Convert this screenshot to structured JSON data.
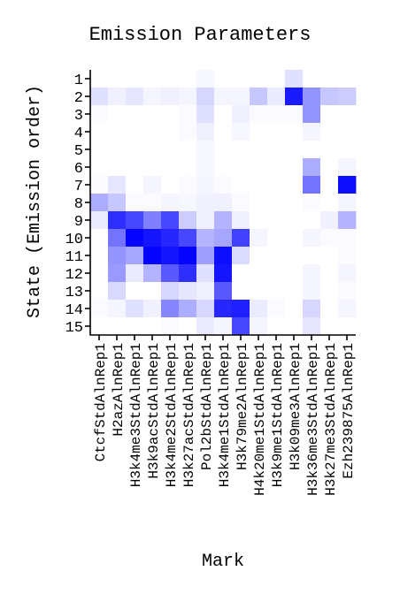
{
  "chart_data": {
    "type": "heatmap",
    "title": "Emission Parameters",
    "xlabel": "Mark",
    "ylabel": "State (Emission order)",
    "rows": [
      "1",
      "2",
      "3",
      "4",
      "5",
      "6",
      "7",
      "8",
      "9",
      "10",
      "11",
      "12",
      "13",
      "14",
      "15"
    ],
    "columns": [
      "CtcfStdAlnRep1",
      "H2azAlnRep1",
      "H3k4me3StdAlnRep1",
      "H3k9acStdAlnRep1",
      "H3k4me2StdAlnRep1",
      "H3k27acStdAlnRep1",
      "Pol2bStdAlnRep1",
      "H3k4me1StdAlnRep1",
      "H3k79me2AlnRep1",
      "H4k20me1StdAlnRep1",
      "H3k9me1StdAlnRep1",
      "H3k09me3AlnRep1",
      "H3k36me3StdAlnRep1",
      "H3k27me3StdAlnRep1",
      "Ezh239875AlnRep1"
    ],
    "values": [
      [
        0.0,
        0.0,
        0.0,
        0.0,
        0.0,
        0.0,
        0.03,
        0.0,
        0.0,
        0.0,
        0.0,
        0.12,
        0.0,
        0.0,
        0.0
      ],
      [
        0.12,
        0.06,
        0.1,
        0.04,
        0.06,
        0.04,
        0.16,
        0.04,
        0.04,
        0.22,
        0.08,
        0.9,
        0.42,
        0.22,
        0.2
      ],
      [
        0.02,
        0.0,
        0.0,
        0.0,
        0.0,
        0.02,
        0.12,
        0.0,
        0.06,
        0.02,
        0.02,
        0.02,
        0.42,
        0.0,
        0.0
      ],
      [
        0.0,
        0.0,
        0.0,
        0.0,
        0.0,
        0.02,
        0.06,
        0.0,
        0.03,
        0.0,
        0.0,
        0.0,
        0.04,
        0.0,
        0.0
      ],
      [
        0.0,
        0.0,
        0.0,
        0.0,
        0.0,
        0.0,
        0.03,
        0.0,
        0.0,
        0.0,
        0.0,
        0.0,
        0.0,
        0.0,
        0.0
      ],
      [
        0.0,
        0.0,
        0.0,
        0.0,
        0.0,
        0.0,
        0.03,
        0.0,
        0.0,
        0.0,
        0.0,
        0.0,
        0.32,
        0.0,
        0.04
      ],
      [
        0.02,
        0.1,
        0.0,
        0.04,
        0.0,
        0.02,
        0.04,
        0.02,
        0.0,
        0.0,
        0.0,
        0.0,
        0.55,
        0.0,
        0.95
      ],
      [
        0.32,
        0.22,
        0.02,
        0.02,
        0.04,
        0.03,
        0.06,
        0.06,
        0.02,
        0.0,
        0.0,
        0.0,
        0.02,
        0.0,
        0.04
      ],
      [
        0.08,
        0.82,
        0.72,
        0.5,
        0.72,
        0.2,
        0.06,
        0.3,
        0.06,
        0.0,
        0.0,
        0.0,
        0.0,
        0.06,
        0.3
      ],
      [
        0.0,
        0.55,
        0.98,
        0.92,
        0.85,
        0.72,
        0.3,
        0.35,
        0.75,
        0.04,
        0.0,
        0.0,
        0.04,
        0.02,
        0.02
      ],
      [
        0.0,
        0.42,
        0.35,
        0.98,
        0.92,
        0.98,
        0.38,
        0.95,
        0.14,
        0.0,
        0.0,
        0.0,
        0.0,
        0.0,
        0.02
      ],
      [
        0.0,
        0.4,
        0.08,
        0.3,
        0.65,
        0.82,
        0.12,
        0.92,
        0.0,
        0.0,
        0.0,
        0.0,
        0.04,
        0.0,
        0.04
      ],
      [
        0.0,
        0.15,
        0.0,
        0.0,
        0.16,
        0.1,
        0.06,
        0.65,
        0.0,
        0.0,
        0.0,
        0.0,
        0.04,
        0.0,
        0.02
      ],
      [
        0.02,
        0.04,
        0.12,
        0.06,
        0.48,
        0.32,
        0.16,
        0.85,
        0.88,
        0.08,
        0.02,
        0.0,
        0.16,
        0.0,
        0.04
      ],
      [
        0.0,
        0.0,
        0.0,
        0.0,
        0.02,
        0.0,
        0.08,
        0.04,
        0.72,
        0.04,
        0.0,
        0.0,
        0.1,
        0.0,
        0.0
      ]
    ],
    "value_range": [
      0,
      1
    ],
    "colors": {
      "low": "#ffffff",
      "high": "#0000ff"
    },
    "legend": "none",
    "grid": false
  }
}
